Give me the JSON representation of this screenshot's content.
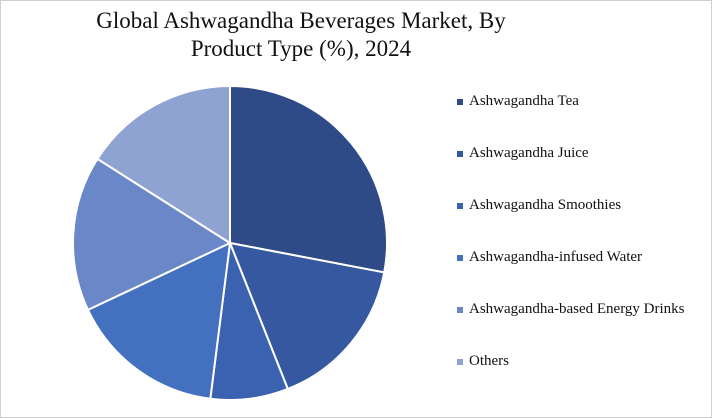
{
  "chart_data": {
    "type": "pie",
    "title": "Global Ashwagandha Beverages Market, By Product Type (%), 2024",
    "categories": [
      "Ashwagandha Tea",
      "Ashwagandha Juice",
      "Ashwagandha Smoothies",
      "Ashwagandha-infused Water",
      "Ashwagandha-based Energy Drinks",
      "Others"
    ],
    "values": [
      28,
      16,
      8,
      16,
      16,
      16
    ],
    "colors": [
      "#2e4a87",
      "#3558a0",
      "#3a62b0",
      "#4470c0",
      "#6a88c8",
      "#8fa3d3"
    ],
    "legend": "right"
  }
}
